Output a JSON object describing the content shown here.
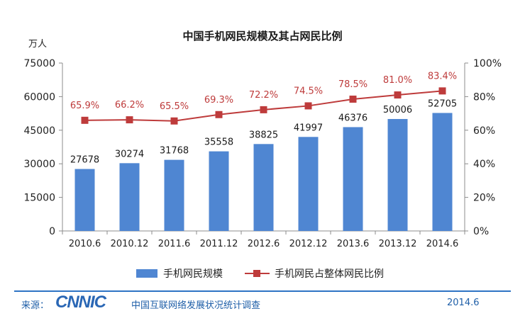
{
  "chart_data": {
    "type": "bar+line",
    "title": "中国手机网民规模及其占网民比例",
    "left_axis_unit": "万人",
    "categories": [
      "2010.6",
      "2010.12",
      "2011.6",
      "2011.12",
      "2012.6",
      "2012.12",
      "2013.6",
      "2013.12",
      "2014.6"
    ],
    "series": [
      {
        "name": "手机网民规模",
        "type": "bar",
        "axis": "left",
        "color": "#4f86d2",
        "values": [
          27678,
          30274,
          31768,
          35558,
          38825,
          41997,
          46376,
          50006,
          52705
        ],
        "labels": [
          "27678",
          "30274",
          "31768",
          "35558",
          "38825",
          "41997",
          "46376",
          "50006",
          "52705"
        ]
      },
      {
        "name": "手机网民占整体网民比例",
        "type": "line",
        "axis": "right",
        "color": "#be3b3b",
        "values": [
          65.9,
          66.2,
          65.5,
          69.3,
          72.2,
          74.5,
          78.5,
          81.0,
          83.4
        ],
        "labels": [
          "65.9%",
          "66.2%",
          "65.5%",
          "69.3%",
          "72.2%",
          "74.5%",
          "78.5%",
          "81.0%",
          "83.4%"
        ]
      }
    ],
    "y_left": {
      "min": 0,
      "max": 75000,
      "ticks": [
        "0",
        "15000",
        "30000",
        "45000",
        "60000",
        "75000"
      ]
    },
    "y_right": {
      "min": 0,
      "max": 100,
      "ticks": [
        "0%",
        "20%",
        "40%",
        "60%",
        "80%",
        "100%"
      ]
    },
    "grid": false,
    "legend_position": "bottom"
  },
  "footer": {
    "source_label": "来源：",
    "logo_text": "CNNIC",
    "report_name": "中国互联网络发展状况统计调查",
    "date": "2014.6"
  }
}
